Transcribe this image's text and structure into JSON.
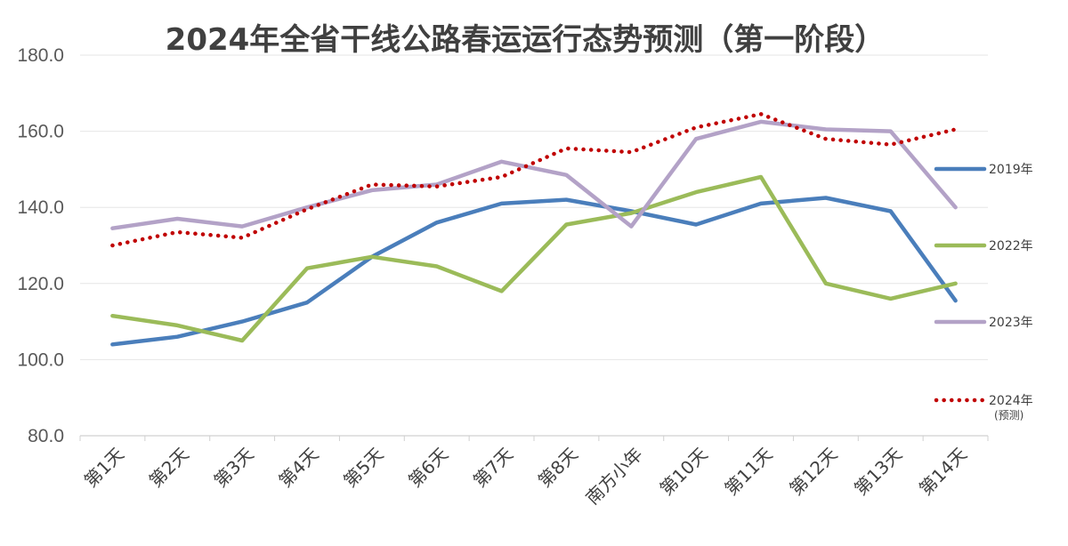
{
  "chart_data": {
    "type": "line",
    "title": "2024年全省干线公路春运运行态势预测（第一阶段）",
    "xlabel": "",
    "ylabel": "",
    "ylim": [
      80,
      180
    ],
    "yticks": [
      "80.0",
      "100.0",
      "120.0",
      "140.0",
      "160.0",
      "180.0"
    ],
    "grid": true,
    "legend_position": "right",
    "categories": [
      "第1天",
      "第2天",
      "第3天",
      "第4天",
      "第5天",
      "第6天",
      "第7天",
      "第8天",
      "南方小年",
      "第10天",
      "第11天",
      "第12天",
      "第13天",
      "第14天"
    ],
    "series": [
      {
        "name": "2019年",
        "color": "#4a7ebb",
        "style": "solid",
        "values": [
          104.0,
          106.0,
          110.0,
          115.0,
          127.0,
          136.0,
          141.0,
          142.0,
          139.0,
          135.5,
          141.0,
          142.5,
          139.0,
          115.5
        ]
      },
      {
        "name": "2022年",
        "color": "#9bbb59",
        "style": "solid",
        "values": [
          111.5,
          109.0,
          105.0,
          124.0,
          127.0,
          124.5,
          118.0,
          135.5,
          138.5,
          144.0,
          148.0,
          120.0,
          116.0,
          120.0
        ]
      },
      {
        "name": "2023年",
        "color": "#b3a2c7",
        "style": "solid",
        "values": [
          134.5,
          137.0,
          135.0,
          140.0,
          144.5,
          146.0,
          152.0,
          148.5,
          135.0,
          158.0,
          162.5,
          160.5,
          160.0,
          140.0
        ]
      },
      {
        "name": "2024年",
        "note": "(预测)",
        "color": "#c00000",
        "style": "dotted",
        "values": [
          130.0,
          133.5,
          132.0,
          139.5,
          146.0,
          145.5,
          148.0,
          155.5,
          154.5,
          161.0,
          164.5,
          158.0,
          156.5,
          160.5
        ]
      }
    ]
  }
}
